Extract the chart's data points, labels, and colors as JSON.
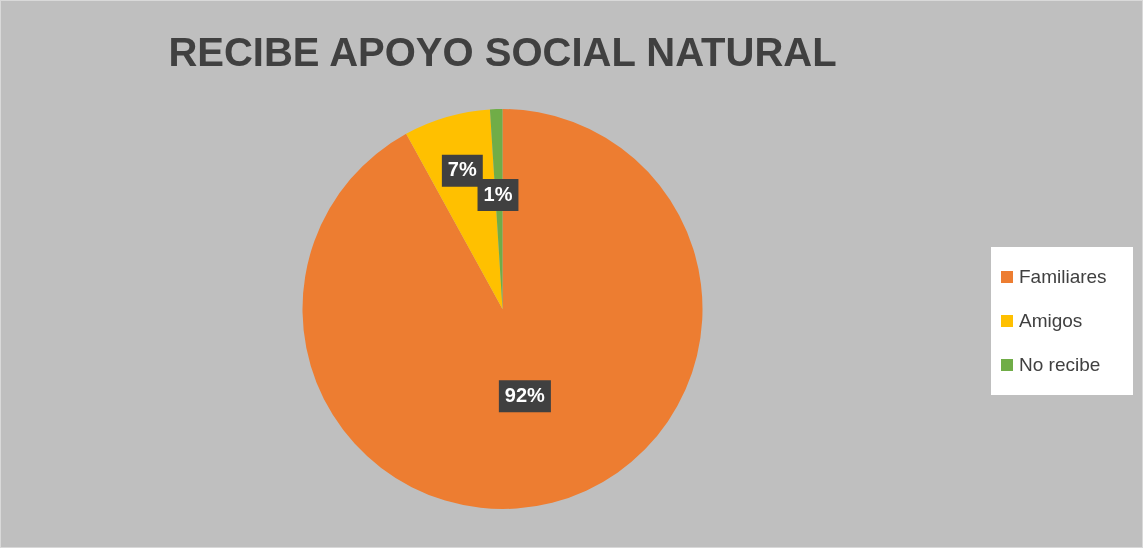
{
  "chart_data": {
    "type": "pie",
    "title": "RECIBE APOYO SOCIAL NATURAL",
    "categories": [
      "Familiares",
      "Amigos",
      "No recibe"
    ],
    "values": [
      92,
      7,
      1
    ],
    "colors": [
      "#ed7d31",
      "#ffc000",
      "#70ad47"
    ],
    "value_labels": [
      "92%",
      "7%",
      "1%"
    ],
    "legend": "right"
  }
}
